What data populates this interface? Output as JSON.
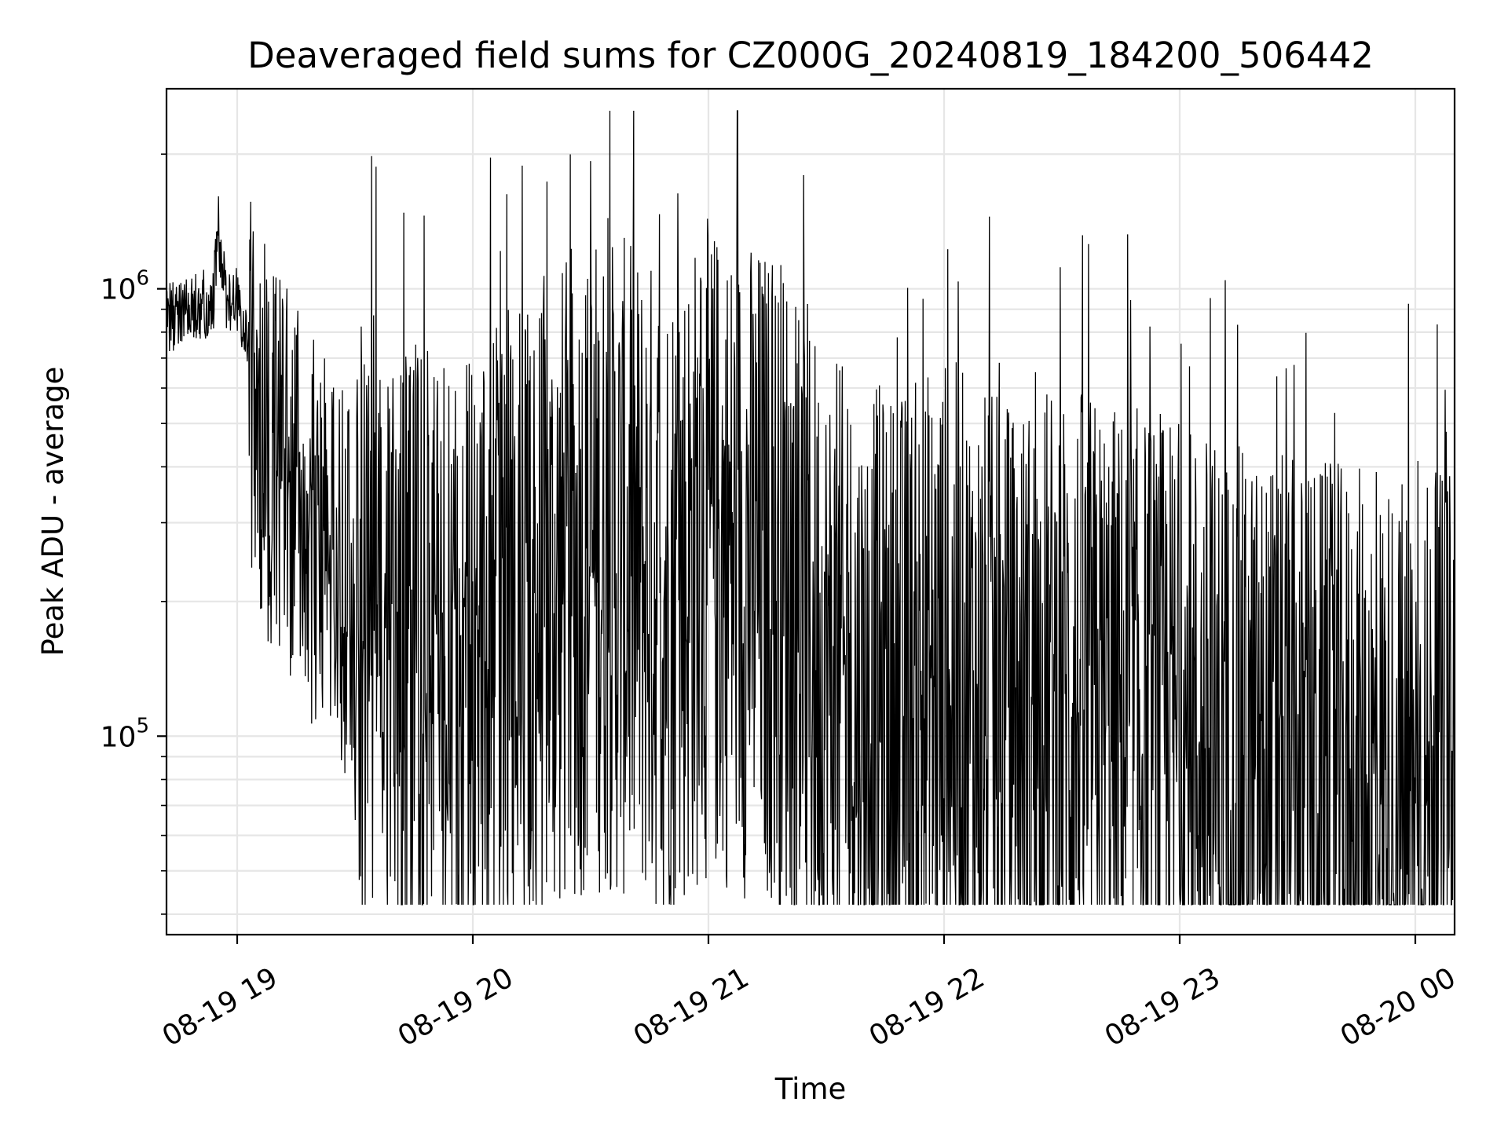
{
  "chart_data": {
    "type": "line",
    "title": "Deaveraged field sums for CZ000G_20240819_184200_506442",
    "xlabel": "Time",
    "ylabel": "Peak ADU - average",
    "x_ticks": [
      "08-19 19",
      "08-19 20",
      "08-19 21",
      "08-19 22",
      "08-19 23",
      "08-20 00"
    ],
    "x_range": [
      "2024-08-19 18:42",
      "2024-08-20 00:10"
    ],
    "y_scale": "log",
    "y_range": [
      36000,
      2800000
    ],
    "y_major_ticks": [
      {
        "value": 100000,
        "base": "10",
        "exp": "5"
      },
      {
        "value": 1000000,
        "base": "10",
        "exp": "6"
      }
    ],
    "grid": true,
    "line_color": "#000000",
    "series": [
      {
        "x": [
          "2024-08-19 18:42",
          "2024-08-19 18:45",
          "2024-08-19 18:48",
          "2024-08-19 18:51",
          "2024-08-19 18:54",
          "2024-08-19 18:55",
          "2024-08-19 18:57",
          "2024-08-19 18:59",
          "2024-08-19 19:01",
          "2024-08-19 19:03",
          "2024-08-19 19:06",
          "2024-08-19 19:09",
          "2024-08-19 19:12",
          "2024-08-19 19:15",
          "2024-08-19 19:18",
          "2024-08-19 19:21",
          "2024-08-19 19:24",
          "2024-08-19 19:27",
          "2024-08-19 19:30",
          "2024-08-19 19:33",
          "2024-08-19 19:36",
          "2024-08-19 19:39",
          "2024-08-19 19:42",
          "2024-08-19 19:45",
          "2024-08-19 19:48",
          "2024-08-19 19:51",
          "2024-08-19 19:54",
          "2024-08-19 19:57",
          "2024-08-19 20:00",
          "2024-08-19 20:10",
          "2024-08-19 20:20",
          "2024-08-19 20:30",
          "2024-08-19 20:40",
          "2024-08-19 20:50",
          "2024-08-19 21:00",
          "2024-08-19 21:10",
          "2024-08-19 21:20",
          "2024-08-19 21:30",
          "2024-08-19 21:40",
          "2024-08-19 21:50",
          "2024-08-19 22:00",
          "2024-08-19 22:15",
          "2024-08-19 22:30",
          "2024-08-19 22:45",
          "2024-08-19 23:00",
          "2024-08-19 23:15",
          "2024-08-19 23:30",
          "2024-08-19 23:45",
          "2024-08-20 00:00",
          "2024-08-20 00:10"
        ],
        "y": [
          850000,
          880000,
          900000,
          920000,
          950000,
          1400000,
          980000,
          960000,
          900000,
          700000,
          500000,
          420000,
          380000,
          330000,
          300000,
          280000,
          260000,
          230000,
          200000,
          180000,
          160000,
          150000,
          140000,
          135000,
          130000,
          130000,
          128000,
          125000,
          125000,
          180000,
          200000,
          250000,
          230000,
          210000,
          260000,
          240000,
          220000,
          130000,
          110000,
          110000,
          130000,
          100000,
          115000,
          100000,
          95000,
          80000,
          75000,
          72000,
          70000,
          70000
        ]
      }
    ]
  }
}
